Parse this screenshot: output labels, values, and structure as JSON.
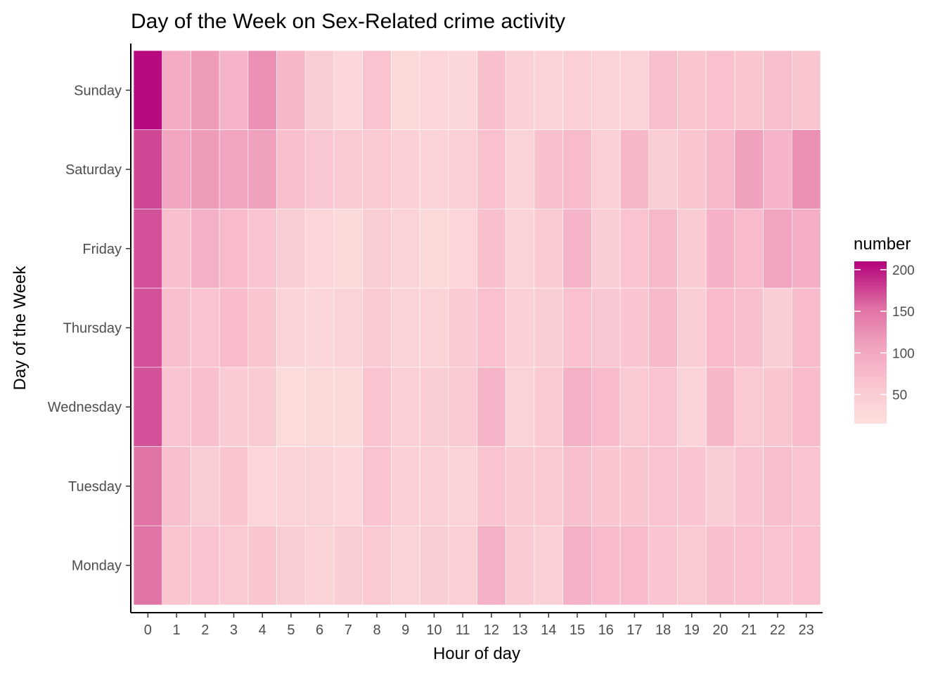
{
  "chart_data": {
    "type": "heatmap",
    "title": "Day of the Week on Sex-Related crime activity",
    "xlabel": "Hour of day",
    "ylabel": "Day of the Week",
    "x_categories": [
      "0",
      "1",
      "2",
      "3",
      "4",
      "5",
      "6",
      "7",
      "8",
      "9",
      "10",
      "11",
      "12",
      "13",
      "14",
      "15",
      "16",
      "17",
      "18",
      "19",
      "20",
      "21",
      "22",
      "23"
    ],
    "y_categories": [
      "Sunday",
      "Saturday",
      "Friday",
      "Thursday",
      "Wednesday",
      "Tuesday",
      "Monday"
    ],
    "values": [
      [
        205,
        95,
        115,
        85,
        125,
        80,
        50,
        32,
        65,
        28,
        35,
        30,
        70,
        42,
        38,
        45,
        40,
        40,
        72,
        60,
        68,
        60,
        72,
        60
      ],
      [
        175,
        105,
        115,
        105,
        110,
        70,
        58,
        55,
        55,
        45,
        40,
        45,
        68,
        40,
        70,
        75,
        45,
        80,
        50,
        60,
        78,
        110,
        85,
        125
      ],
      [
        170,
        70,
        90,
        75,
        65,
        50,
        35,
        28,
        48,
        40,
        28,
        35,
        70,
        40,
        55,
        85,
        50,
        65,
        78,
        52,
        88,
        75,
        105,
        92
      ],
      [
        170,
        70,
        65,
        75,
        60,
        38,
        30,
        38,
        55,
        38,
        38,
        55,
        68,
        42,
        50,
        68,
        58,
        62,
        78,
        50,
        75,
        70,
        50,
        75
      ],
      [
        170,
        65,
        70,
        52,
        52,
        22,
        28,
        28,
        65,
        45,
        50,
        55,
        85,
        40,
        55,
        90,
        75,
        55,
        65,
        40,
        80,
        55,
        60,
        75
      ],
      [
        150,
        70,
        50,
        60,
        35,
        40,
        38,
        32,
        65,
        42,
        42,
        38,
        65,
        52,
        55,
        72,
        60,
        60,
        65,
        62,
        48,
        62,
        72,
        65
      ],
      [
        150,
        60,
        65,
        55,
        60,
        48,
        38,
        50,
        55,
        38,
        48,
        45,
        90,
        52,
        42,
        90,
        75,
        75,
        62,
        55,
        70,
        68,
        65,
        68
      ]
    ],
    "colorbar": {
      "title": "number",
      "range": [
        15,
        210
      ],
      "ticks": [
        50,
        100,
        150,
        200
      ],
      "low_color": "#fde0dd",
      "high_color": "#b3007a"
    },
    "legend_position": "right",
    "grid": false
  }
}
